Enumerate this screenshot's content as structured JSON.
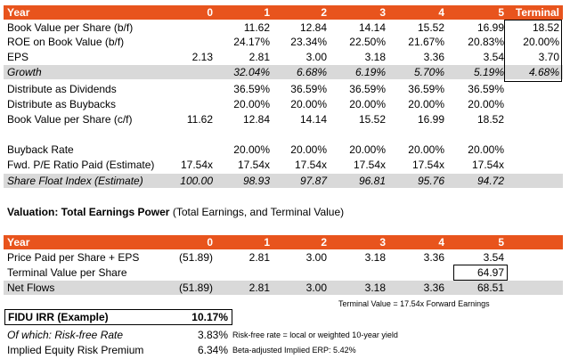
{
  "t1": {
    "header": [
      "Year",
      "0",
      "1",
      "2",
      "3",
      "4",
      "5",
      "Terminal"
    ],
    "rows": [
      {
        "label": "Book Value per Share (b/f)",
        "cells": [
          "",
          "11.62",
          "12.84",
          "14.14",
          "15.52",
          "16.99",
          "18.52"
        ]
      },
      {
        "label": "ROE on Book Value (b/f)",
        "cells": [
          "",
          "24.17%",
          "23.34%",
          "22.50%",
          "21.67%",
          "20.83%",
          "20.00%"
        ]
      },
      {
        "label": "EPS",
        "cells": [
          "2.13",
          "2.81",
          "3.00",
          "3.18",
          "3.36",
          "3.54",
          "3.70"
        ]
      },
      {
        "label": "Growth",
        "cells": [
          "",
          "32.04%",
          "6.68%",
          "6.19%",
          "5.70%",
          "5.19%",
          "4.68%"
        ]
      },
      {
        "label": "Distribute as Dividends",
        "cells": [
          "",
          "36.59%",
          "36.59%",
          "36.59%",
          "36.59%",
          "36.59%",
          ""
        ]
      },
      {
        "label": "Distribute as Buybacks",
        "cells": [
          "",
          "20.00%",
          "20.00%",
          "20.00%",
          "20.00%",
          "20.00%",
          ""
        ]
      },
      {
        "label": "Book Value per Share (c/f)",
        "cells": [
          "11.62",
          "12.84",
          "14.14",
          "15.52",
          "16.99",
          "18.52",
          ""
        ]
      },
      {
        "label": "Buyback Rate",
        "cells": [
          "",
          "20.00%",
          "20.00%",
          "20.00%",
          "20.00%",
          "20.00%",
          ""
        ]
      },
      {
        "label": "Fwd. P/E Ratio Paid (Estimate)",
        "cells": [
          "17.54x",
          "17.54x",
          "17.54x",
          "17.54x",
          "17.54x",
          "17.54x",
          ""
        ]
      },
      {
        "label": "Share Float Index (Estimate)",
        "cells": [
          "100.00",
          "98.93",
          "97.87",
          "96.81",
          "95.76",
          "94.72",
          ""
        ]
      }
    ]
  },
  "valuation": {
    "title_bold": "Valuation:  Total Earnings Power",
    "title_rest": " (Total Earnings, and Terminal Value)"
  },
  "t2": {
    "header": [
      "Year",
      "0",
      "1",
      "2",
      "3",
      "4",
      "5"
    ],
    "rows": [
      {
        "label": "Price Paid per Share + EPS",
        "cells": [
          "(51.89)",
          "2.81",
          "3.00",
          "3.18",
          "3.36",
          "3.54"
        ]
      },
      {
        "label": "Terminal Value per Share",
        "cells": [
          "",
          "",
          "",
          "",
          "",
          "64.97"
        ]
      },
      {
        "label": "Net Flows",
        "cells": [
          "(51.89)",
          "2.81",
          "3.00",
          "3.18",
          "3.36",
          "68.51"
        ]
      }
    ],
    "note": "Terminal Value = 17.54x Forward Earnings"
  },
  "irr": {
    "label": "FIDU IRR (Example)",
    "value": "10.17%",
    "rf_label": "Of which: Risk-free Rate",
    "rf_value": "3.83%",
    "rf_note": "Risk-free rate = local or weighted 10-year yield",
    "erp_label": "Implied Equity Risk Premium",
    "erp_value": "6.34%",
    "erp_note": "Beta-adjusted Implied ERP: 5.42%"
  },
  "colors": {
    "header": "#e8541d",
    "shade": "#d9d9d9"
  }
}
